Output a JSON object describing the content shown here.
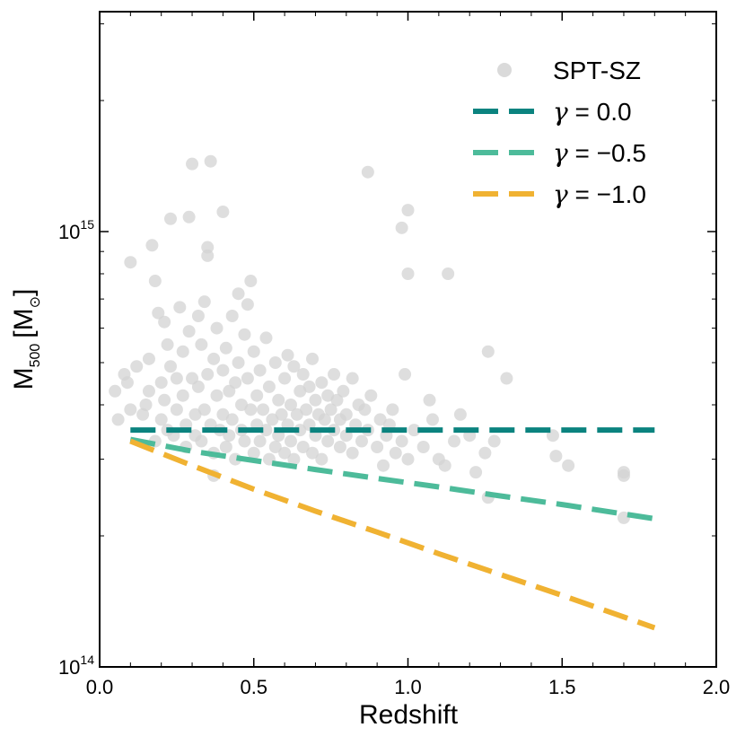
{
  "chart_data": {
    "type": "scatter",
    "title": "",
    "xlabel": "Redshift",
    "ylabel": {
      "main": "M",
      "subscript": "500",
      "unit": "[M",
      "unit_subscript": "⊙",
      "unit_close": "]"
    },
    "xlim": [
      0.0,
      2.0
    ],
    "ylim": [
      100000000000000.0,
      3200000000000000.0
    ],
    "yscale": "log",
    "grid": false,
    "legend_position": "top-right",
    "x_ticks": [
      "0.0",
      "0.5",
      "1.0",
      "1.5",
      "2.0"
    ],
    "y_ticks": [
      {
        "value": 100000000000000.0,
        "base": "10",
        "exp": "14"
      },
      {
        "value": 1000000000000000.0,
        "base": "10",
        "exp": "15"
      }
    ],
    "colors": {
      "spt_sz": "#d3d3d3",
      "gamma_0": "#0b837f",
      "gamma_m05": "#4dbb9a",
      "gamma_m10": "#f0b232"
    },
    "legend": [
      {
        "key": "spt_sz",
        "symbol": "",
        "text": "SPT-SZ"
      },
      {
        "key": "gamma_0",
        "symbol": "γ",
        "text": " = 0.0"
      },
      {
        "key": "gamma_m05",
        "symbol": "γ",
        "text": " = −0.5"
      },
      {
        "key": "gamma_m10",
        "symbol": "γ",
        "text": " = −1.0"
      }
    ],
    "lines": [
      {
        "key": "gamma_0",
        "x": [
          0.1,
          1.8
        ],
        "y": [
          350000000000000.0,
          350000000000000.0
        ]
      },
      {
        "key": "gamma_m05",
        "x": [
          0.1,
          0.3,
          0.5,
          0.7,
          0.9,
          1.1,
          1.3,
          1.5,
          1.8
        ],
        "y": [
          333000000000000.0,
          313000000000000.0,
          298000000000000.0,
          284000000000000.0,
          271000000000000.0,
          259000000000000.0,
          247000000000000.0,
          236000000000000.0,
          219000000000000.0
        ]
      },
      {
        "key": "gamma_m10",
        "x": [
          0.1,
          0.3,
          0.5,
          0.7,
          0.9,
          1.1,
          1.3,
          1.5,
          1.8
        ],
        "y": [
          330000000000000.0,
          290000000000000.0,
          256000000000000.0,
          228000000000000.0,
          204000000000000.0,
          182000000000000.0,
          163000000000000.0,
          146000000000000.0,
          123000000000000.0
        ]
      }
    ],
    "series": [
      {
        "key": "spt_sz",
        "name": "SPT-SZ",
        "points": [
          [
            0.05,
            430000000000000.0
          ],
          [
            0.06,
            370000000000000.0
          ],
          [
            0.08,
            470000000000000.0
          ],
          [
            0.09,
            450000000000000.0
          ],
          [
            0.1,
            850000000000000.0
          ],
          [
            0.1,
            390000000000000.0
          ],
          [
            0.12,
            490000000000000.0
          ],
          [
            0.14,
            380000000000000.0
          ],
          [
            0.15,
            400000000000000.0
          ],
          [
            0.16,
            430000000000000.0
          ],
          [
            0.16,
            510000000000000.0
          ],
          [
            0.17,
            930000000000000.0
          ],
          [
            0.18,
            770000000000000.0
          ],
          [
            0.18,
            330000000000000.0
          ],
          [
            0.19,
            650000000000000.0
          ],
          [
            0.2,
            450000000000000.0
          ],
          [
            0.2,
            370000000000000.0
          ],
          [
            0.21,
            620000000000000.0
          ],
          [
            0.21,
            410000000000000.0
          ],
          [
            0.22,
            350000000000000.0
          ],
          [
            0.22,
            550000000000000.0
          ],
          [
            0.23,
            1070000000000000.0
          ],
          [
            0.23,
            490000000000000.0
          ],
          [
            0.24,
            340000000000000.0
          ],
          [
            0.25,
            460000000000000.0
          ],
          [
            0.25,
            390000000000000.0
          ],
          [
            0.26,
            670000000000000.0
          ],
          [
            0.27,
            530000000000000.0
          ],
          [
            0.27,
            420000000000000.0
          ],
          [
            0.28,
            360000000000000.0
          ],
          [
            0.28,
            320000000000000.0
          ],
          [
            0.29,
            1080000000000000.0
          ],
          [
            0.29,
            590000000000000.0
          ],
          [
            0.3,
            1430000000000000.0
          ],
          [
            0.3,
            460000000000000.0
          ],
          [
            0.31,
            380000000000000.0
          ],
          [
            0.31,
            340000000000000.0
          ],
          [
            0.32,
            640000000000000.0
          ],
          [
            0.32,
            440000000000000.0
          ],
          [
            0.33,
            550000000000000.0
          ],
          [
            0.33,
            330000000000000.0
          ],
          [
            0.34,
            390000000000000.0
          ],
          [
            0.34,
            690000000000000.0
          ],
          [
            0.35,
            880000000000000.0
          ],
          [
            0.35,
            920000000000000.0
          ],
          [
            0.35,
            470000000000000.0
          ],
          [
            0.36,
            1450000000000000.0
          ],
          [
            0.36,
            360000000000000.0
          ],
          [
            0.37,
            510000000000000.0
          ],
          [
            0.37,
            310000000000000.0
          ],
          [
            0.37,
            275000000000000.0
          ],
          [
            0.38,
            420000000000000.0
          ],
          [
            0.38,
            600000000000000.0
          ],
          [
            0.39,
            350000000000000.0
          ],
          [
            0.4,
            1110000000000000.0
          ],
          [
            0.4,
            480000000000000.0
          ],
          [
            0.4,
            380000000000000.0
          ],
          [
            0.41,
            320000000000000.0
          ],
          [
            0.41,
            540000000000000.0
          ],
          [
            0.42,
            430000000000000.0
          ],
          [
            0.42,
            340000000000000.0
          ],
          [
            0.43,
            640000000000000.0
          ],
          [
            0.43,
            370000000000000.0
          ],
          [
            0.44,
            450000000000000.0
          ],
          [
            0.44,
            300000000000000.0
          ],
          [
            0.45,
            500000000000000.0
          ],
          [
            0.45,
            720000000000000.0
          ],
          [
            0.46,
            400000000000000.0
          ],
          [
            0.46,
            350000000000000.0
          ],
          [
            0.47,
            580000000000000.0
          ],
          [
            0.47,
            330000000000000.0
          ],
          [
            0.48,
            460000000000000.0
          ],
          [
            0.48,
            680000000000000.0
          ],
          [
            0.49,
            770000000000000.0
          ],
          [
            0.49,
            390000000000000.0
          ],
          [
            0.5,
            310000000000000.0
          ],
          [
            0.5,
            530000000000000.0
          ],
          [
            0.51,
            420000000000000.0
          ],
          [
            0.51,
            360000000000000.0
          ],
          [
            0.52,
            480000000000000.0
          ],
          [
            0.52,
            330000000000000.0
          ],
          [
            0.53,
            390000000000000.0
          ],
          [
            0.54,
            570000000000000.0
          ],
          [
            0.54,
            350000000000000.0
          ],
          [
            0.55,
            440000000000000.0
          ],
          [
            0.55,
            300000000000000.0
          ],
          [
            0.56,
            370000000000000.0
          ],
          [
            0.57,
            500000000000000.0
          ],
          [
            0.57,
            320000000000000.0
          ],
          [
            0.58,
            410000000000000.0
          ],
          [
            0.58,
            340000000000000.0
          ],
          [
            0.59,
            380000000000000.0
          ],
          [
            0.6,
            460000000000000.0
          ],
          [
            0.6,
            310000000000000.0
          ],
          [
            0.61,
            360000000000000.0
          ],
          [
            0.61,
            520000000000000.0
          ],
          [
            0.62,
            400000000000000.0
          ],
          [
            0.62,
            330000000000000.0
          ],
          [
            0.63,
            490000000000000.0
          ],
          [
            0.63,
            300000000000000.0
          ],
          [
            0.64,
            380000000000000.0
          ],
          [
            0.65,
            430000000000000.0
          ],
          [
            0.65,
            350000000000000.0
          ],
          [
            0.66,
            470000000000000.0
          ],
          [
            0.66,
            320000000000000.0
          ],
          [
            0.67,
            390000000000000.0
          ],
          [
            0.68,
            440000000000000.0
          ],
          [
            0.68,
            360000000000000.0
          ],
          [
            0.69,
            510000000000000.0
          ],
          [
            0.69,
            310000000000000.0
          ],
          [
            0.7,
            410000000000000.0
          ],
          [
            0.7,
            340000000000000.0
          ],
          [
            0.71,
            380000000000000.0
          ],
          [
            0.72,
            450000000000000.0
          ],
          [
            0.72,
            300000000000000.0
          ],
          [
            0.73,
            370000000000000.0
          ],
          [
            0.74,
            420000000000000.0
          ],
          [
            0.74,
            330000000000000.0
          ],
          [
            0.75,
            390000000000000.0
          ],
          [
            0.76,
            470000000000000.0
          ],
          [
            0.76,
            350000000000000.0
          ],
          [
            0.77,
            410000000000000.0
          ],
          [
            0.78,
            320000000000000.0
          ],
          [
            0.78,
            370000000000000.0
          ],
          [
            0.79,
            430000000000000.0
          ],
          [
            0.8,
            380000000000000.0
          ],
          [
            0.8,
            340000000000000.0
          ],
          [
            0.82,
            460000000000000.0
          ],
          [
            0.82,
            310000000000000.0
          ],
          [
            0.83,
            360000000000000.0
          ],
          [
            0.84,
            400000000000000.0
          ],
          [
            0.85,
            330000000000000.0
          ],
          [
            0.86,
            390000000000000.0
          ],
          [
            0.87,
            1370000000000000.0
          ],
          [
            0.87,
            350000000000000.0
          ],
          [
            0.88,
            420000000000000.0
          ],
          [
            0.9,
            320000000000000.0
          ],
          [
            0.91,
            370000000000000.0
          ],
          [
            0.92,
            290000000000000.0
          ],
          [
            0.93,
            340000000000000.0
          ],
          [
            0.94,
            360000000000000.0
          ],
          [
            0.95,
            390000000000000.0
          ],
          [
            0.96,
            310000000000000.0
          ],
          [
            0.98,
            1020000000000000.0
          ],
          [
            0.98,
            330000000000000.0
          ],
          [
            0.99,
            470000000000000.0
          ],
          [
            1.0,
            800000000000000.0
          ],
          [
            1.0,
            1120000000000000.0
          ],
          [
            1.0,
            300000000000000.0
          ],
          [
            1.02,
            350000000000000.0
          ],
          [
            1.05,
            320000000000000.0
          ],
          [
            1.07,
            410000000000000.0
          ],
          [
            1.08,
            370000000000000.0
          ],
          [
            1.1,
            300000000000000.0
          ],
          [
            1.12,
            290000000000000.0
          ],
          [
            1.13,
            800000000000000.0
          ],
          [
            1.15,
            330000000000000.0
          ],
          [
            1.17,
            380000000000000.0
          ],
          [
            1.2,
            340000000000000.0
          ],
          [
            1.22,
            280000000000000.0
          ],
          [
            1.25,
            310000000000000.0
          ],
          [
            1.26,
            530000000000000.0
          ],
          [
            1.26,
            245000000000000.0
          ],
          [
            1.28,
            330000000000000.0
          ],
          [
            1.32,
            460000000000000.0
          ],
          [
            1.47,
            340000000000000.0
          ],
          [
            1.48,
            305000000000000.0
          ],
          [
            1.52,
            290000000000000.0
          ],
          [
            1.7,
            220000000000000.0
          ],
          [
            1.7,
            280000000000000.0
          ],
          [
            1.7,
            275000000000000.0
          ]
        ]
      }
    ]
  }
}
